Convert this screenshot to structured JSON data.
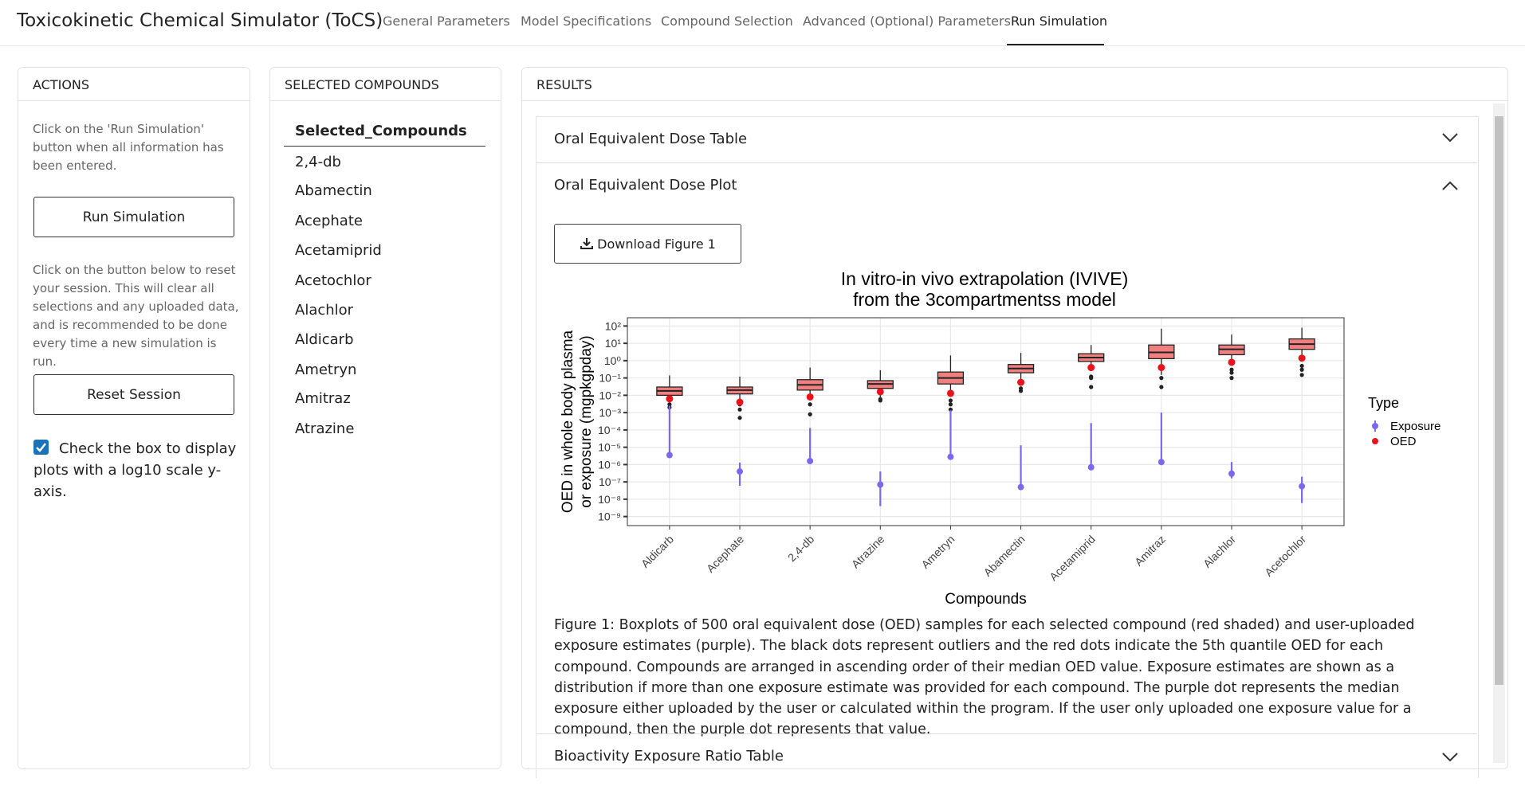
{
  "header": {
    "title": "Toxicokinetic Chemical Simulator (ToCS)",
    "tabs": [
      "General Parameters",
      "Model Specifications",
      "Compound Selection",
      "Advanced (Optional) Parameters",
      "Run Simulation"
    ]
  },
  "actions": {
    "heading": "ACTIONS",
    "run_text": "Click on the 'Run Simulation' button when all information has been entered.",
    "run_button": "Run Simulation",
    "reset_text": "Click on the button below to reset your session. This will clear all selections and any uploaded data, and is recommended to be done every time a new simulation is run.",
    "reset_button": "Reset Session",
    "log_checkbox_label": "Check the box to display plots with a log10 scale y-axis."
  },
  "selected": {
    "heading": "SELECTED COMPOUNDS",
    "column": "Selected_Compounds",
    "rows": [
      "2,4-db",
      "Abamectin",
      "Acephate",
      "Acetamiprid",
      "Acetochlor",
      "Alachlor",
      "Aldicarb",
      "Ametryn",
      "Amitraz",
      "Atrazine"
    ]
  },
  "results": {
    "heading": "RESULTS",
    "sections": [
      "Oral Equivalent Dose Table",
      "Oral Equivalent Dose Plot",
      "Bioactivity Exposure Ratio Table"
    ],
    "download_button": "Download Figure 1",
    "caption": "Figure 1: Boxplots of 500 oral equivalent dose (OED) samples for each selected compound (red shaded) and user-uploaded exposure estimates (purple). The black dots represent outliers and the red dots indicate the 5th quantile OED for each compound. Compounds are arranged in ascending order of their median OED value. Exposure estimates are shown as a distribution if more than one exposure estimate was provided for each compound. The purple dot represents the median exposure either uploaded by the user or calculated within the program. If the user only uploaded one exposure value for a compound, then the purple dot represents that value."
  },
  "chart_data": {
    "type": "boxplot",
    "title": [
      "In vitro-in vivo extrapolation (IVIVE)",
      "from the 3compartmentss model"
    ],
    "x_label": "Compounds",
    "y_label": [
      "OED in whole body plasma",
      "or exposure (mgpkgpday)"
    ],
    "log_scale": true,
    "grid": true,
    "legend_title": "Type",
    "legend_position": "right",
    "categories": [
      "Aldicarb",
      "Acephate",
      "2,4-db",
      "Atrazine",
      "Ametryn",
      "Abamectin",
      "Acetamiprid",
      "Amitraz",
      "Alachlor",
      "Acetochlor"
    ],
    "ylim": [
      3e-10,
      300
    ],
    "yticks": [
      {
        "value": 1e-09,
        "label": "10⁻⁹"
      },
      {
        "value": 1e-08,
        "label": "10⁻⁸"
      },
      {
        "value": 1e-07,
        "label": "10⁻⁷"
      },
      {
        "value": 1e-06,
        "label": "10⁻⁶"
      },
      {
        "value": 1e-05,
        "label": "10⁻⁵"
      },
      {
        "value": 0.0001,
        "label": "10⁻⁴"
      },
      {
        "value": 0.001,
        "label": "10⁻³"
      },
      {
        "value": 0.01,
        "label": "10⁻²"
      },
      {
        "value": 0.1,
        "label": "10⁻¹"
      },
      {
        "value": 1,
        "label": "10⁰"
      },
      {
        "value": 10,
        "label": "10¹"
      },
      {
        "value": 100,
        "label": "10²"
      }
    ],
    "box_color": "#f08080",
    "oed_color": "#e8141b",
    "exposure_color": "#7b68ee",
    "boxes": [
      {
        "whislo": 0.0052,
        "q1": 0.01,
        "med": 0.018,
        "q3": 0.03,
        "whishi": 0.14,
        "fliers": [
          0.003,
          0.002
        ]
      },
      {
        "whislo": 0.006,
        "q1": 0.012,
        "med": 0.02,
        "q3": 0.03,
        "whishi": 0.12,
        "fliers": [
          0.003,
          0.0015,
          0.0005
        ]
      },
      {
        "whislo": 0.007,
        "q1": 0.02,
        "med": 0.04,
        "q3": 0.08,
        "whishi": 0.4,
        "fliers": [
          0.003,
          0.0008
        ]
      },
      {
        "whislo": 0.008,
        "q1": 0.025,
        "med": 0.045,
        "q3": 0.07,
        "whishi": 0.28,
        "fliers": [
          0.006,
          0.005
        ]
      },
      {
        "whislo": 0.008,
        "q1": 0.045,
        "med": 0.1,
        "q3": 0.22,
        "whishi": 2,
        "fliers": [
          0.005,
          0.003,
          0.0015
        ]
      },
      {
        "whislo": 0.06,
        "q1": 0.2,
        "med": 0.35,
        "q3": 0.6,
        "whishi": 2.8,
        "fliers": [
          0.025,
          0.018
        ]
      },
      {
        "whislo": 0.25,
        "q1": 0.9,
        "med": 1.5,
        "q3": 2.5,
        "whishi": 8,
        "fliers": [
          0.12,
          0.1,
          0.03
        ]
      },
      {
        "whislo": 0.15,
        "q1": 1.3,
        "med": 3,
        "q3": 8,
        "whishi": 70,
        "fliers": [
          0.1,
          0.03
        ]
      },
      {
        "whislo": 0.5,
        "q1": 2.2,
        "med": 4.5,
        "q3": 8,
        "whishi": 32,
        "fliers": [
          0.3,
          0.2,
          0.1
        ]
      },
      {
        "whislo": 1,
        "q1": 4.5,
        "med": 9,
        "q3": 18,
        "whishi": 80,
        "fliers": [
          0.5,
          0.3,
          0.15
        ]
      }
    ],
    "series": [
      {
        "name": "Exposure",
        "values": [
          3.5e-06,
          4e-07,
          1.6e-06,
          7e-08,
          2.8e-06,
          5e-08,
          7e-07,
          1.4e-06,
          3e-07,
          5.6e-08
        ],
        "low": [
          3.5e-06,
          6e-08,
          1.6e-06,
          4e-09,
          2.8e-06,
          5e-08,
          7e-07,
          1.4e-06,
          1.6e-07,
          6e-09
        ],
        "high": [
          0.0025,
          1.3e-06,
          0.00013,
          4e-07,
          0.0014,
          1.3e-05,
          0.00025,
          0.001,
          1.4e-06,
          2e-07
        ]
      },
      {
        "name": "OED",
        "values": [
          0.0063,
          0.004,
          0.008,
          0.016,
          0.013,
          0.056,
          0.4,
          0.4,
          0.8,
          1.4
        ]
      }
    ]
  }
}
